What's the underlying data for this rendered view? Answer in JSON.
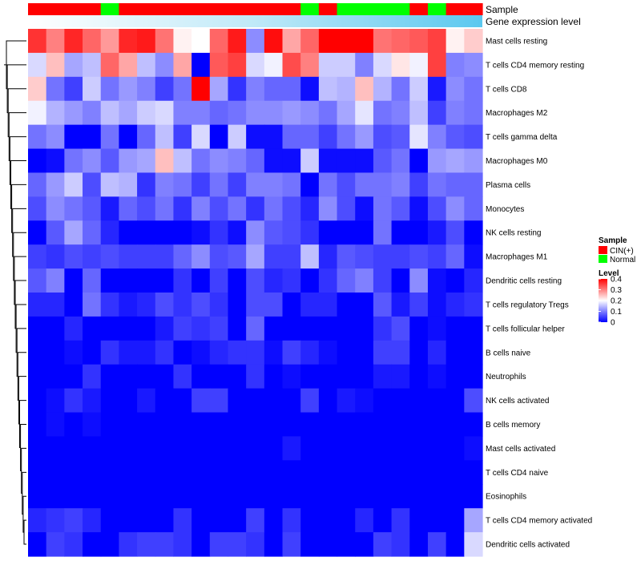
{
  "chart_data": {
    "type": "heatmap",
    "title": "",
    "annotation_tracks": [
      "Sample",
      "Gene expression level"
    ],
    "sample_groups": [
      "CIN(+)",
      "CIN(+)",
      "CIN(+)",
      "CIN(+)",
      "Normal",
      "CIN(+)",
      "CIN(+)",
      "CIN(+)",
      "CIN(+)",
      "CIN(+)",
      "CIN(+)",
      "CIN(+)",
      "CIN(+)",
      "CIN(+)",
      "CIN(+)",
      "Normal",
      "CIN(+)",
      "Normal",
      "Normal",
      "Normal",
      "Normal",
      "CIN(+)",
      "Normal",
      "CIN(+)",
      "CIN(+)"
    ],
    "rows": [
      "Mast cells resting",
      "T cells CD4 memory resting",
      "T cells CD8",
      "Macrophages M2",
      "T cells gamma delta",
      "Macrophages M0",
      "Plasma cells",
      "Monocytes",
      "NK cells resting",
      "Macrophages M1",
      "Dendritic cells resting",
      "T cells regulatory  Tregs",
      "T cells follicular helper",
      "B cells naive",
      "Neutrophils",
      "NK cells activated",
      "B cells memory",
      "Mast cells activated",
      "T cells CD4 naive",
      "Eosinophils",
      "T cells CD4 memory activated",
      "Dendritic cells activated"
    ],
    "values": [
      [
        0.36,
        0.3,
        0.37,
        0.32,
        0.28,
        0.37,
        0.38,
        0.31,
        0.21,
        0.2,
        0.32,
        0.38,
        0.11,
        0.39,
        0.27,
        0.32,
        0.4,
        0.4,
        0.4,
        0.31,
        0.32,
        0.33,
        0.35,
        0.21,
        0.24
      ],
      [
        0.17,
        0.25,
        0.13,
        0.15,
        0.32,
        0.27,
        0.15,
        0.11,
        0.27,
        0.0,
        0.33,
        0.35,
        0.17,
        0.19,
        0.34,
        0.3,
        0.16,
        0.16,
        0.1,
        0.17,
        0.22,
        0.19,
        0.35,
        0.1,
        0.11
      ],
      [
        0.24,
        0.09,
        0.05,
        0.16,
        0.09,
        0.12,
        0.1,
        0.05,
        0.09,
        0.4,
        0.13,
        0.04,
        0.1,
        0.08,
        0.08,
        0.01,
        0.15,
        0.14,
        0.25,
        0.14,
        0.09,
        0.16,
        0.02,
        0.11,
        0.09
      ],
      [
        0.19,
        0.14,
        0.12,
        0.1,
        0.15,
        0.13,
        0.16,
        0.17,
        0.1,
        0.1,
        0.08,
        0.09,
        0.11,
        0.11,
        0.12,
        0.11,
        0.09,
        0.13,
        0.18,
        0.09,
        0.1,
        0.15,
        0.05,
        0.1,
        0.09
      ],
      [
        0.09,
        0.11,
        0.0,
        0.0,
        0.09,
        0.0,
        0.08,
        0.15,
        0.05,
        0.17,
        0.0,
        0.16,
        0.01,
        0.01,
        0.08,
        0.08,
        0.05,
        0.09,
        0.12,
        0.06,
        0.07,
        0.18,
        0.1,
        0.07,
        0.06
      ],
      [
        0.0,
        0.01,
        0.09,
        0.11,
        0.07,
        0.12,
        0.13,
        0.25,
        0.15,
        0.09,
        0.11,
        0.1,
        0.08,
        0.01,
        0.01,
        0.16,
        0.01,
        0.01,
        0.01,
        0.07,
        0.09,
        0.0,
        0.12,
        0.13,
        0.12
      ],
      [
        0.08,
        0.12,
        0.16,
        0.06,
        0.15,
        0.14,
        0.04,
        0.1,
        0.09,
        0.05,
        0.09,
        0.05,
        0.1,
        0.1,
        0.09,
        0.0,
        0.09,
        0.06,
        0.09,
        0.09,
        0.1,
        0.05,
        0.09,
        0.08,
        0.08
      ],
      [
        0.06,
        0.11,
        0.09,
        0.07,
        0.02,
        0.08,
        0.06,
        0.09,
        0.04,
        0.1,
        0.06,
        0.09,
        0.04,
        0.09,
        0.06,
        0.03,
        0.11,
        0.06,
        0.01,
        0.09,
        0.07,
        0.01,
        0.06,
        0.11,
        0.08
      ],
      [
        0.0,
        0.07,
        0.13,
        0.08,
        0.03,
        0.0,
        0.0,
        0.0,
        0.0,
        0.01,
        0.04,
        0.01,
        0.11,
        0.07,
        0.06,
        0.04,
        0.0,
        0.0,
        0.0,
        0.09,
        0.0,
        0.0,
        0.02,
        0.06,
        0.0
      ],
      [
        0.05,
        0.04,
        0.06,
        0.05,
        0.06,
        0.05,
        0.05,
        0.05,
        0.08,
        0.11,
        0.06,
        0.07,
        0.13,
        0.05,
        0.05,
        0.15,
        0.03,
        0.07,
        0.06,
        0.05,
        0.05,
        0.06,
        0.05,
        0.08,
        0.01
      ],
      [
        0.07,
        0.1,
        0.0,
        0.08,
        0.0,
        0.0,
        0.0,
        0.0,
        0.04,
        0.0,
        0.05,
        0.0,
        0.06,
        0.03,
        0.04,
        0.0,
        0.04,
        0.08,
        0.1,
        0.05,
        0.0,
        0.11,
        0.01,
        0.0,
        0.03
      ],
      [
        0.03,
        0.03,
        0.0,
        0.09,
        0.04,
        0.02,
        0.03,
        0.06,
        0.04,
        0.06,
        0.04,
        0.0,
        0.06,
        0.06,
        0.0,
        0.03,
        0.03,
        0.0,
        0.0,
        0.07,
        0.02,
        0.05,
        0.01,
        0.03,
        0.04
      ],
      [
        0.0,
        0.0,
        0.03,
        0.0,
        0.0,
        0.0,
        0.0,
        0.02,
        0.05,
        0.04,
        0.05,
        0.0,
        0.08,
        0.0,
        0.0,
        0.0,
        0.0,
        0.0,
        0.0,
        0.04,
        0.06,
        0.0,
        0.01,
        0.0,
        0.0
      ],
      [
        0.0,
        0.0,
        0.01,
        0.0,
        0.04,
        0.02,
        0.02,
        0.04,
        0.0,
        0.01,
        0.03,
        0.04,
        0.04,
        0.01,
        0.05,
        0.03,
        0.01,
        0.0,
        0.0,
        0.05,
        0.05,
        0.0,
        0.03,
        0.0,
        0.0
      ],
      [
        0.0,
        0.0,
        0.0,
        0.04,
        0.0,
        0.0,
        0.0,
        0.0,
        0.04,
        0.0,
        0.0,
        0.0,
        0.04,
        0.0,
        0.01,
        0.0,
        0.0,
        0.0,
        0.0,
        0.02,
        0.02,
        0.0,
        0.01,
        0.0,
        0.0
      ],
      [
        0.0,
        0.01,
        0.04,
        0.02,
        0.0,
        0.0,
        0.02,
        0.0,
        0.0,
        0.05,
        0.05,
        0.0,
        0.0,
        0.0,
        0.0,
        0.05,
        0.0,
        0.02,
        0.01,
        0.0,
        0.0,
        0.0,
        0.0,
        0.0,
        0.06
      ],
      [
        0.0,
        0.01,
        0.0,
        0.01,
        0.0,
        0.0,
        0.0,
        0.0,
        0.0,
        0.0,
        0.0,
        0.0,
        0.0,
        0.0,
        0.0,
        0.0,
        0.0,
        0.0,
        0.0,
        0.0,
        0.0,
        0.0,
        0.0,
        0.0,
        0.0
      ],
      [
        0.0,
        0.0,
        0.0,
        0.0,
        0.0,
        0.0,
        0.0,
        0.0,
        0.0,
        0.0,
        0.0,
        0.0,
        0.0,
        0.0,
        0.02,
        0.0,
        0.0,
        0.0,
        0.0,
        0.0,
        0.0,
        0.0,
        0.0,
        0.0,
        0.01
      ],
      [
        0.0,
        0.0,
        0.0,
        0.0,
        0.0,
        0.0,
        0.0,
        0.0,
        0.0,
        0.0,
        0.0,
        0.0,
        0.0,
        0.0,
        0.0,
        0.0,
        0.0,
        0.0,
        0.0,
        0.0,
        0.0,
        0.0,
        0.0,
        0.0,
        0.0
      ],
      [
        0.0,
        0.0,
        0.0,
        0.0,
        0.0,
        0.0,
        0.0,
        0.0,
        0.0,
        0.0,
        0.0,
        0.0,
        0.0,
        0.0,
        0.0,
        0.0,
        0.0,
        0.0,
        0.0,
        0.0,
        0.0,
        0.0,
        0.0,
        0.0,
        0.0
      ],
      [
        0.03,
        0.04,
        0.05,
        0.03,
        0.0,
        0.0,
        0.0,
        0.0,
        0.04,
        0.0,
        0.0,
        0.0,
        0.05,
        0.0,
        0.04,
        0.0,
        0.0,
        0.0,
        0.03,
        0.0,
        0.04,
        0.0,
        0.0,
        0.0,
        0.13
      ],
      [
        0.0,
        0.05,
        0.04,
        0.0,
        0.0,
        0.04,
        0.05,
        0.05,
        0.04,
        0.0,
        0.05,
        0.05,
        0.04,
        0.0,
        0.05,
        0.0,
        0.0,
        0.0,
        0.0,
        0.05,
        0.04,
        0.0,
        0.05,
        0.0,
        0.17
      ]
    ],
    "color_scale": {
      "min": 0,
      "mid": 0.2,
      "max": 0.4,
      "low_color": "#0000ff",
      "mid_color": "#ffffff",
      "high_color": "#ff0000"
    },
    "legend": {
      "sample_title": "Sample",
      "sample_entries": [
        {
          "label": "CIN(+)",
          "color": "#ff0000"
        },
        {
          "label": "Normal",
          "color": "#00ff00"
        }
      ],
      "level_title": "Level",
      "level_ticks": [
        0.4,
        0.3,
        0.2,
        0.1,
        0
      ],
      "position": "right"
    },
    "expression_level_colors": [
      "#ffffff",
      "#5bc8ef"
    ],
    "row_dendrogram": true
  }
}
